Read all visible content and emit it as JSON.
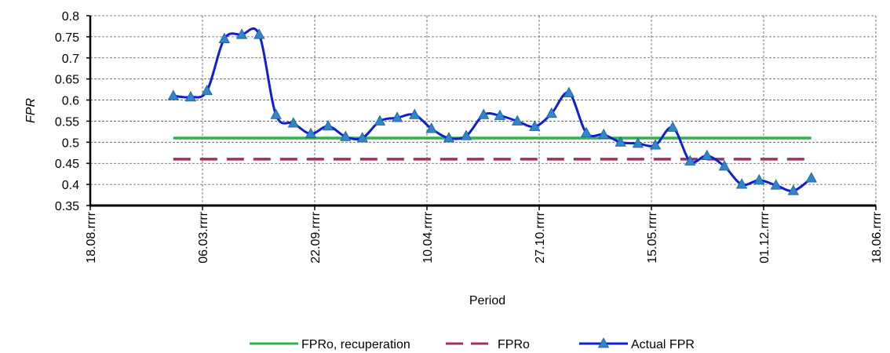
{
  "chart_data": {
    "type": "line",
    "x_label": "Period",
    "y_label": "FPR",
    "xlim": [
      0,
      1400
    ],
    "xticks": [
      {
        "value": 0,
        "label": "18.08.rrrr"
      },
      {
        "value": 200,
        "label": "06.03.rrrr"
      },
      {
        "value": 400,
        "label": "22.09.rrrr"
      },
      {
        "value": 600,
        "label": "10.04.rrrr"
      },
      {
        "value": 800,
        "label": "27.10.rrrr"
      },
      {
        "value": 1000,
        "label": "15.05.rrrr"
      },
      {
        "value": 1200,
        "label": "01.12.rrrr"
      },
      {
        "value": 1400,
        "label": "18.06.rrrr"
      }
    ],
    "ylim": [
      0.35,
      0.8
    ],
    "yticks": [
      0.35,
      0.4,
      0.45,
      0.5,
      0.55,
      0.6,
      0.65,
      0.7,
      0.75,
      0.8
    ],
    "grid": true,
    "legend": "bottom",
    "series": [
      {
        "name": "FPRo,  recuperation",
        "color": "#2db34a",
        "dash": false,
        "markers": false,
        "x": [
          148,
          1285
        ],
        "values": [
          0.51,
          0.51
        ]
      },
      {
        "name": "FPRo",
        "color": "#a03060",
        "dash": true,
        "markers": false,
        "x": [
          148,
          1285
        ],
        "values": [
          0.46,
          0.46
        ]
      },
      {
        "name": "Actual FPR",
        "color": "#0f1fd6",
        "marker_color": "#2f86c8",
        "dash": false,
        "markers": true,
        "x": [
          148,
          179,
          208,
          239,
          270,
          301,
          331,
          362,
          393,
          424,
          455,
          485,
          516,
          547,
          578,
          608,
          639,
          670,
          701,
          730,
          761,
          792,
          822,
          853,
          884,
          915,
          945,
          976,
          1007,
          1038,
          1069,
          1099,
          1130,
          1161,
          1192,
          1222,
          1253,
          1285
        ],
        "values": [
          0.61,
          0.607,
          0.622,
          0.745,
          0.755,
          0.755,
          0.565,
          0.545,
          0.52,
          0.538,
          0.513,
          0.51,
          0.55,
          0.558,
          0.565,
          0.532,
          0.51,
          0.515,
          0.565,
          0.563,
          0.55,
          0.537,
          0.568,
          0.617,
          0.522,
          0.518,
          0.5,
          0.497,
          0.493,
          0.535,
          0.455,
          0.468,
          0.443,
          0.4,
          0.41,
          0.398,
          0.385,
          0.415
        ]
      }
    ]
  }
}
